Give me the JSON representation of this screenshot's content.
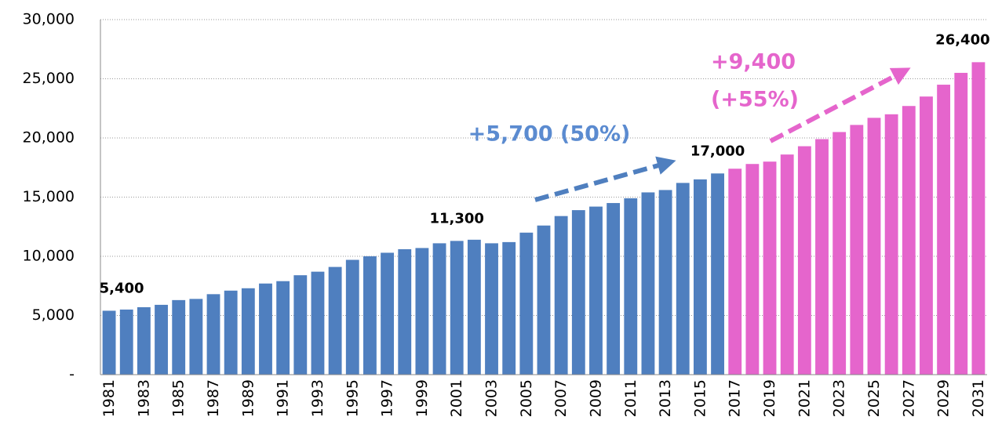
{
  "chart_data": {
    "type": "bar",
    "categories": [
      "1981",
      null,
      "1983",
      null,
      "1985",
      null,
      "1987",
      null,
      "1989",
      null,
      "1991",
      null,
      "1993",
      null,
      "1995",
      null,
      "1997",
      null,
      "1999",
      null,
      "2001",
      null,
      "2003",
      null,
      "2005",
      null,
      "2007",
      null,
      "2009",
      null,
      "2011",
      null,
      "2013",
      null,
      "2015",
      null,
      "2017",
      null,
      "2019",
      null,
      "2021",
      null,
      "2023",
      null,
      "2025",
      null,
      "2027",
      null,
      "2029",
      null,
      "2031"
    ],
    "series": [
      {
        "color": "#4f7fbf",
        "values": [
          5400,
          5500,
          5700,
          5900,
          6300,
          6400,
          6800,
          7100,
          7300,
          7700,
          7900,
          8400,
          8700,
          9100,
          9700,
          10000,
          10300,
          10600,
          10700,
          11100,
          11300,
          11400,
          11100,
          11200,
          12000,
          12600,
          13400,
          13900,
          14200,
          14500,
          14900,
          15400,
          15600,
          16200,
          16500,
          17000,
          null,
          null,
          null,
          null,
          null,
          null,
          null,
          null,
          null,
          null,
          null,
          null,
          null,
          null,
          null
        ],
        "value_labels": [
          "5,400",
          null,
          null,
          null,
          null,
          null,
          null,
          null,
          null,
          null,
          null,
          null,
          null,
          null,
          null,
          null,
          null,
          null,
          null,
          null,
          "11,300",
          null,
          null,
          null,
          null,
          null,
          null,
          null,
          null,
          null,
          null,
          null,
          null,
          null,
          null,
          "17,000",
          null,
          null,
          null,
          null,
          null,
          null,
          null,
          null,
          null,
          null,
          null,
          null,
          null,
          null,
          null
        ]
      },
      {
        "color": "#e565cc",
        "values": [
          null,
          null,
          null,
          null,
          null,
          null,
          null,
          null,
          null,
          null,
          null,
          null,
          null,
          null,
          null,
          null,
          null,
          null,
          null,
          null,
          null,
          null,
          null,
          null,
          null,
          null,
          null,
          null,
          null,
          null,
          null,
          null,
          null,
          null,
          null,
          null,
          17400,
          17800,
          18000,
          18600,
          19300,
          19900,
          20500,
          21100,
          21700,
          22000,
          22700,
          23500,
          24500,
          25500,
          26400
        ],
        "value_labels": [
          null,
          null,
          null,
          null,
          null,
          null,
          null,
          null,
          null,
          null,
          null,
          null,
          null,
          null,
          null,
          null,
          null,
          null,
          null,
          null,
          null,
          null,
          null,
          null,
          null,
          null,
          null,
          null,
          null,
          null,
          null,
          null,
          null,
          null,
          null,
          null,
          null,
          null,
          null,
          null,
          null,
          null,
          null,
          null,
          null,
          null,
          null,
          null,
          null,
          null,
          "26,400"
        ]
      }
    ],
    "ylim": [
      0,
      30000
    ],
    "yticks": [
      {
        "value": 0,
        "label": "-"
      },
      {
        "value": 5000,
        "label": "5,000"
      },
      {
        "value": 10000,
        "label": "10,000"
      },
      {
        "value": 15000,
        "label": "15,000"
      },
      {
        "value": 20000,
        "label": "20,000"
      },
      {
        "value": 25000,
        "label": "25,000"
      },
      {
        "value": 30000,
        "label": "30,000"
      }
    ],
    "grid": true,
    "annotations": [
      "+5,700 (50%)",
      "+9,400",
      "(+55%)"
    ]
  }
}
